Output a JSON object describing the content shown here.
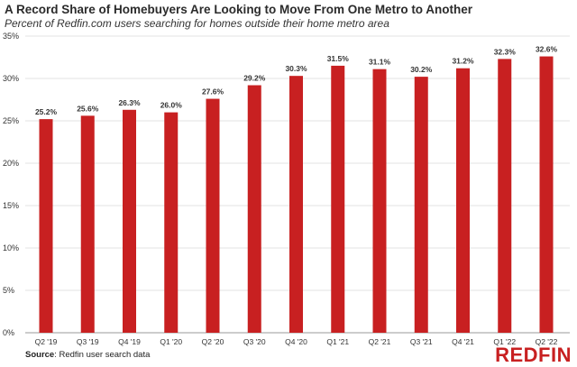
{
  "chart_data": {
    "type": "bar",
    "title": "A Record Share of Homebuyers Are Looking to Move From One Metro to Another",
    "subtitle": "Percent of Redfin.com users searching for homes outside their home metro area",
    "categories": [
      "Q2 '19",
      "Q3 '19",
      "Q4 '19",
      "Q1 '20",
      "Q2 '20",
      "Q3 '20",
      "Q4 '20",
      "Q1 '21",
      "Q2 '21",
      "Q3 '21",
      "Q4 '21",
      "Q1 '22",
      "Q2 '22"
    ],
    "values": [
      25.2,
      25.6,
      26.3,
      26.0,
      27.6,
      29.2,
      30.3,
      31.5,
      31.1,
      30.2,
      31.2,
      32.3,
      32.6
    ],
    "value_labels": [
      "25.2%",
      "25.6%",
      "26.3%",
      "26.0%",
      "27.6%",
      "29.2%",
      "30.3%",
      "31.5%",
      "31.1%",
      "30.2%",
      "31.2%",
      "32.3%",
      "32.6%"
    ],
    "ylim": [
      0,
      35
    ],
    "yticks": [
      0,
      5,
      10,
      15,
      20,
      25,
      30,
      35
    ],
    "ytick_labels": [
      "0%",
      "5%",
      "10%",
      "15%",
      "20%",
      "25%",
      "30%",
      "35%"
    ],
    "xlabel": "",
    "ylabel": "",
    "grid": true,
    "bar_color": "#c82021"
  },
  "source": {
    "label": "Source",
    "text": ": Redfin user search data"
  },
  "brand": {
    "logo_text": "REDFIN",
    "color": "#c82021"
  }
}
